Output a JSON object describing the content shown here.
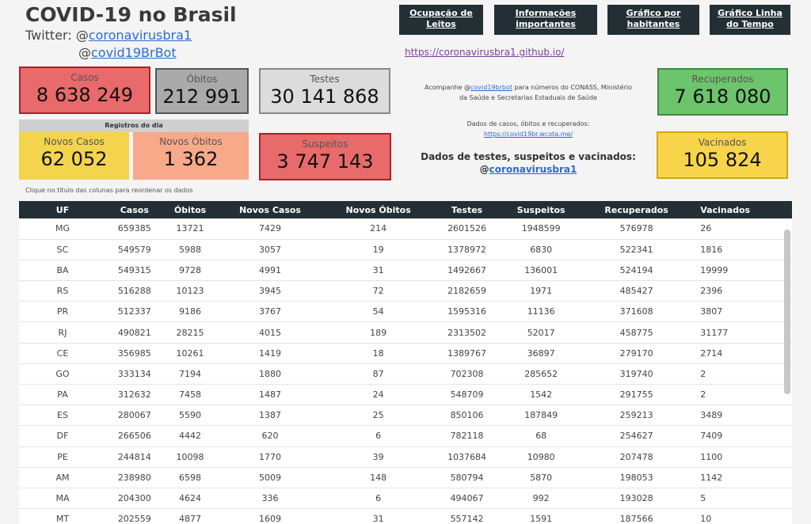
{
  "header": {
    "title": "COVID-19 no Brasil",
    "twitter_prefix": "Twitter: @",
    "twitter1": "coronavirusbra1",
    "twitter2_prefix": "@",
    "twitter2": "covid19BrBot",
    "github_link": "https://coronavirusbra1.github.io/"
  },
  "nav": [
    {
      "label1": "Ocupação de",
      "label2": "Leitos"
    },
    {
      "label1": "Informações",
      "label2": "importantes"
    },
    {
      "label1": "Gráfico por",
      "label2": "habitantes"
    },
    {
      "label1": "Gráfico Linha",
      "label2": "do Tempo"
    }
  ],
  "cards": {
    "casos": {
      "label": "Casos",
      "value": "8 638 249"
    },
    "obitos": {
      "label": "Óbitos",
      "value": "212 991"
    },
    "testes": {
      "label": "Testes",
      "value": "30 141 868"
    },
    "suspeitos": {
      "label": "Suspeitos",
      "value": "3 747 143"
    },
    "recuperados": {
      "label": "Recuperados",
      "value": "7 618 080"
    },
    "vacinados": {
      "label": "Vacinados",
      "value": "105 824"
    },
    "registros_header": "Registros do dia",
    "novos_casos": {
      "label": "Novos Casos",
      "value": "62 052"
    },
    "novos_obitos": {
      "label": "Novos Óbitos",
      "value": "1 362"
    }
  },
  "hint": "Clique no título das colunas para reordenar os dados",
  "info": {
    "line1_a": "Acompanhe @",
    "line1_link": "covid19brbot",
    "line1_b": " para números do CONASS, Ministério",
    "line2": "da Saúde e Secretarias Estaduais de Saúde",
    "line3": "Dados de casos, óbitos e recuperados:",
    "line3_link": "https://covid19br.wcota.me/",
    "line4": "Dados de testes, suspeitos e vacinados:",
    "line5_prefix": "@",
    "line5_link": "coronavirusbra1"
  },
  "table": {
    "headers": [
      "UF",
      "Casos",
      "Óbitos",
      "Novos Casos",
      "Novos Óbitos",
      "Testes",
      "Suspeitos",
      "Recuperados",
      "Vacinados"
    ],
    "rows": [
      [
        "MG",
        "659385",
        "13721",
        "7429",
        "214",
        "2601526",
        "1948599",
        "576978",
        "26"
      ],
      [
        "SC",
        "549579",
        "5988",
        "3057",
        "19",
        "1378972",
        "6830",
        "522341",
        "1816"
      ],
      [
        "BA",
        "549315",
        "9728",
        "4991",
        "31",
        "1492667",
        "136001",
        "524194",
        "19999"
      ],
      [
        "RS",
        "516288",
        "10123",
        "3945",
        "72",
        "2182659",
        "1971",
        "485427",
        "2396"
      ],
      [
        "PR",
        "512337",
        "9186",
        "3767",
        "54",
        "1595316",
        "11136",
        "371608",
        "3807"
      ],
      [
        "RJ",
        "490821",
        "28215",
        "4015",
        "189",
        "2313502",
        "52017",
        "458775",
        "31177"
      ],
      [
        "CE",
        "356985",
        "10261",
        "1419",
        "18",
        "1389767",
        "36897",
        "279170",
        "2714"
      ],
      [
        "GO",
        "333134",
        "7194",
        "1880",
        "87",
        "702308",
        "285652",
        "319740",
        "2"
      ],
      [
        "PA",
        "312632",
        "7458",
        "1487",
        "24",
        "548709",
        "1542",
        "291755",
        "2"
      ],
      [
        "ES",
        "280067",
        "5590",
        "1387",
        "25",
        "850106",
        "187849",
        "259213",
        "3489"
      ],
      [
        "DF",
        "266506",
        "4442",
        "620",
        "6",
        "782118",
        "68",
        "254627",
        "7409"
      ],
      [
        "PE",
        "244814",
        "10098",
        "1770",
        "39",
        "1037684",
        "10980",
        "207478",
        "1100"
      ],
      [
        "AM",
        "238980",
        "6598",
        "5009",
        "148",
        "580794",
        "5870",
        "198053",
        "1142"
      ],
      [
        "MA",
        "204300",
        "4624",
        "336",
        "6",
        "494067",
        "992",
        "193028",
        "5"
      ],
      [
        "MT",
        "202559",
        "4877",
        "1609",
        "31",
        "557142",
        "1591",
        "187566",
        "10"
      ]
    ]
  }
}
